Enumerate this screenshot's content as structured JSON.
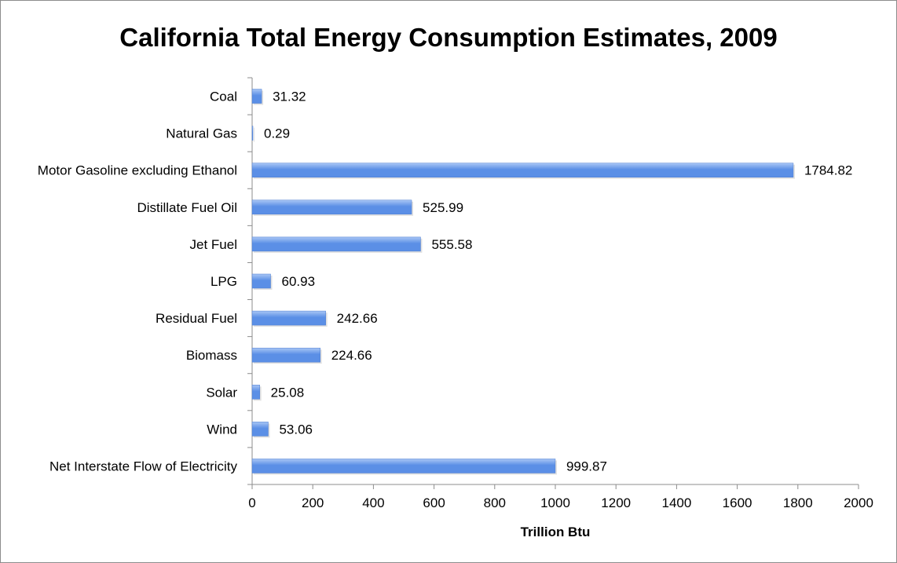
{
  "chart_data": {
    "type": "bar",
    "orientation": "horizontal",
    "title": "California Total Energy Consumption Estimates, 2009",
    "xlabel": "Trillion Btu",
    "ylabel": "",
    "categories": [
      "Coal",
      "Natural Gas",
      "Motor Gasoline excluding Ethanol",
      "Distillate Fuel Oil",
      "Jet Fuel",
      "LPG",
      "Residual Fuel",
      "Biomass",
      "Solar",
      "Wind",
      "Net Interstate Flow of Electricity"
    ],
    "values": [
      31.32,
      0.29,
      1784.82,
      525.99,
      555.58,
      60.93,
      242.66,
      224.66,
      25.08,
      53.06,
      999.87
    ],
    "value_labels": [
      "31.32",
      "0.29",
      "1784.82",
      "525.99",
      "555.58",
      "60.93",
      "242.66",
      "224.66",
      "25.08",
      "53.06",
      "999.87"
    ],
    "xlim": [
      0,
      2000
    ],
    "x_ticks": [
      0,
      200,
      400,
      600,
      800,
      1000,
      1200,
      1400,
      1600,
      1800,
      2000
    ],
    "x_tick_labels": [
      "0",
      "200",
      "400",
      "600",
      "800",
      "1000",
      "1200",
      "1400",
      "1600",
      "1800",
      "2000"
    ],
    "grid": false,
    "legend": "none",
    "bar_color": "#5b8fe6",
    "bar_highlight_color": "#a9c6f5"
  }
}
